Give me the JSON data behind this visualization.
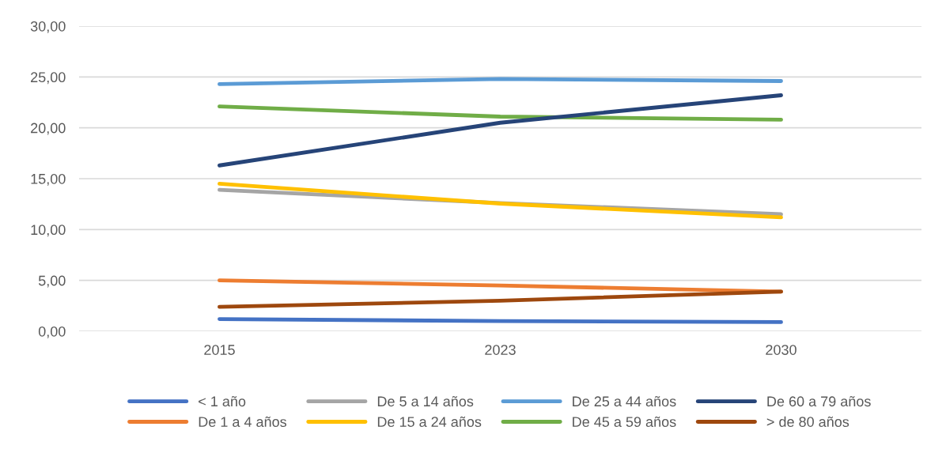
{
  "chart_data": {
    "type": "line",
    "categories": [
      "2015",
      "2023",
      "2030"
    ],
    "series": [
      {
        "name": "< 1 año",
        "color": "#4472c4",
        "values": [
          1.2,
          1.0,
          0.9
        ]
      },
      {
        "name": "De 1 a 4 años",
        "color": "#ed7d31",
        "values": [
          5.0,
          4.5,
          3.9
        ]
      },
      {
        "name": "De 5 a 14 años",
        "color": "#a5a5a5",
        "values": [
          13.9,
          12.6,
          11.5
        ]
      },
      {
        "name": "De 15 a 24 años",
        "color": "#ffc000",
        "values": [
          14.5,
          12.55,
          11.2
        ]
      },
      {
        "name": "De 25 a 44 años",
        "color": "#5b9bd5",
        "values": [
          24.3,
          24.8,
          24.6
        ]
      },
      {
        "name": "De 45 a 59 años",
        "color": "#70ad47",
        "values": [
          22.1,
          21.1,
          20.8
        ]
      },
      {
        "name": "De 60 a 79 años",
        "color": "#264478",
        "values": [
          16.3,
          20.5,
          23.2
        ]
      },
      {
        "name": "> de 80 años",
        "color": "#9e480e",
        "values": [
          2.4,
          3.0,
          3.9
        ]
      }
    ],
    "ylim": [
      0,
      30
    ],
    "yticks": [
      {
        "value": 0,
        "label": "0,00"
      },
      {
        "value": 5,
        "label": "5,00"
      },
      {
        "value": 10,
        "label": "10,00"
      },
      {
        "value": 15,
        "label": "15,00"
      },
      {
        "value": 20,
        "label": "20,00"
      },
      {
        "value": 25,
        "label": "25,00"
      },
      {
        "value": 30,
        "label": "30,00"
      }
    ],
    "grid": "y",
    "legend": "bottom",
    "marker": "none",
    "line_style": "solid"
  }
}
